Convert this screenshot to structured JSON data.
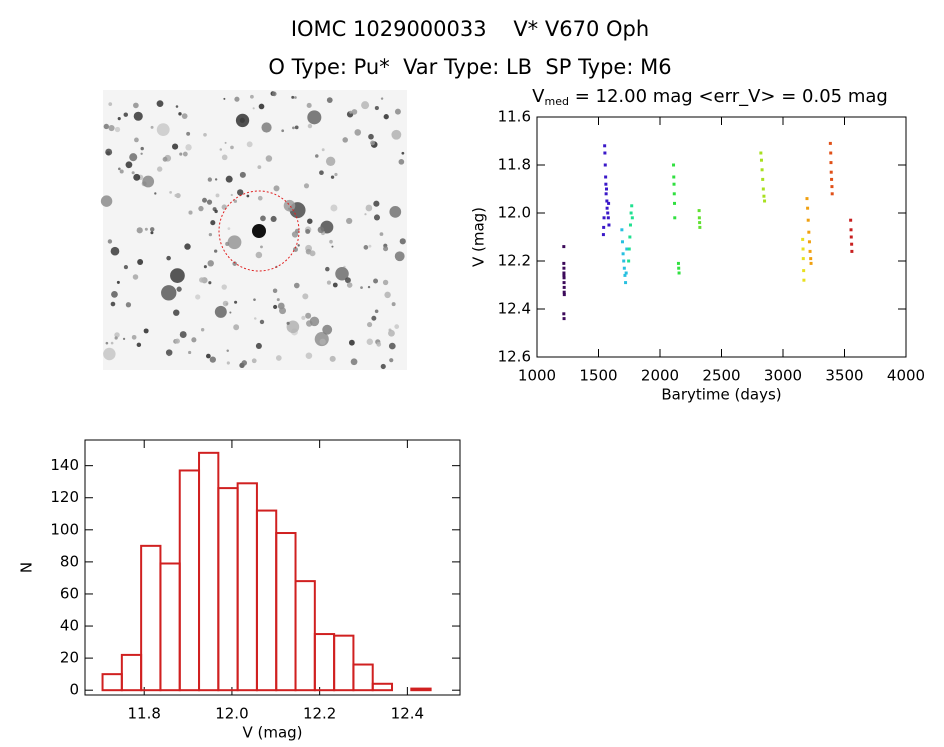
{
  "title": "IOMC 1029000033    V* V670 Oph",
  "subtitle": "O Type: Pu*  Var Type: LB  SP Type: M6",
  "chart_data": [
    {
      "type": "scatter",
      "title": {
        "main": "V",
        "sub": "med",
        "rest": " = 12.00 mag <err_V> = 0.05 mag"
      },
      "x_label": "Barytime (days)",
      "y_label": "V (mag)",
      "xlim": [
        1000,
        4000
      ],
      "xticks": [
        1000,
        1500,
        2000,
        2500,
        3000,
        3500,
        4000
      ],
      "ylim": [
        12.6,
        11.6
      ],
      "yticks": [
        11.6,
        11.8,
        {
          "value": 12,
          "label": "12.0"
        },
        12.2,
        12.4,
        12.6
      ],
      "series": [
        {
          "color": "#3c0a5a",
          "x": [
            1218,
            1218,
            1219,
            1219,
            1220,
            1220,
            1221,
            1221,
            1222,
            1218,
            1220,
            1219
          ],
          "values": [
            12.14,
            12.21,
            12.23,
            12.25,
            12.27,
            12.29,
            12.31,
            12.33,
            12.34,
            12.42,
            12.44,
            12.26
          ]
        },
        {
          "color": "#3a18c8",
          "x": [
            1540,
            1542,
            1545,
            1550,
            1552,
            1555,
            1558,
            1560,
            1562,
            1565,
            1568,
            1570,
            1575,
            1580,
            1582,
            1585
          ],
          "values": [
            12.09,
            12.06,
            12.02,
            11.72,
            11.75,
            11.8,
            11.85,
            11.88,
            11.92,
            11.9,
            11.95,
            11.98,
            12.0,
            12.02,
            11.96,
            12.05
          ]
        },
        {
          "color": "#28c0e0",
          "x": [
            1690,
            1695,
            1700,
            1705,
            1710,
            1715,
            1720,
            1725,
            1730
          ],
          "values": [
            12.07,
            12.12,
            12.17,
            12.2,
            12.23,
            12.26,
            12.29,
            12.25,
            12.15
          ]
        },
        {
          "color": "#20e090",
          "x": [
            1745,
            1750,
            1755,
            1760,
            1765,
            1770,
            1775
          ],
          "values": [
            12.2,
            12.15,
            12.1,
            12.05,
            12.0,
            11.97,
            12.02
          ]
        },
        {
          "color": "#30e040",
          "x": [
            2110,
            2112,
            2114,
            2116,
            2118,
            2120,
            2150,
            2152,
            2155
          ],
          "values": [
            11.8,
            11.85,
            11.88,
            11.92,
            11.96,
            12.02,
            12.21,
            12.23,
            12.25
          ]
        },
        {
          "color": "#60e030",
          "x": [
            2318,
            2320,
            2322,
            2324
          ],
          "values": [
            11.99,
            12.02,
            12.04,
            12.06
          ]
        },
        {
          "color": "#a8e020",
          "x": [
            2820,
            2825,
            2830,
            2835,
            2840,
            2845,
            2850
          ],
          "values": [
            11.75,
            11.78,
            11.82,
            11.86,
            11.9,
            11.93,
            11.95
          ]
        },
        {
          "color": "#e8e020",
          "x": [
            3160,
            3163,
            3165,
            3168,
            3170
          ],
          "values": [
            12.11,
            12.15,
            12.19,
            12.24,
            12.28
          ]
        },
        {
          "color": "#f0a010",
          "x": [
            3195,
            3200,
            3205,
            3210,
            3215,
            3220,
            3225,
            3228
          ],
          "values": [
            11.94,
            11.98,
            12.03,
            12.08,
            12.12,
            12.16,
            12.19,
            12.21
          ]
        },
        {
          "color": "#e05018",
          "x": [
            3385,
            3388,
            3390,
            3392,
            3395,
            3398,
            3400
          ],
          "values": [
            11.71,
            11.75,
            11.79,
            11.83,
            11.86,
            11.89,
            11.92
          ]
        },
        {
          "color": "#c82020",
          "x": [
            3550,
            3553,
            3555,
            3558,
            3560
          ],
          "values": [
            12.03,
            12.07,
            12.1,
            12.13,
            12.16
          ]
        }
      ]
    },
    {
      "type": "histogram",
      "x_label": "V (mag)",
      "y_label": "N",
      "color": "#d02020",
      "bins": [
        11.705,
        11.749,
        11.793,
        11.837,
        11.881,
        11.925,
        11.969,
        12.013,
        12.057,
        12.101,
        12.145,
        12.189,
        12.233,
        12.277,
        12.321,
        12.365,
        12.409,
        12.453
      ],
      "values": [
        10,
        22,
        90,
        79,
        137,
        148,
        126,
        129,
        112,
        98,
        68,
        35,
        34,
        16,
        4,
        0,
        1
      ],
      "xlim": [
        11.665,
        12.52
      ],
      "xticks": [
        11.8,
        {
          "value": 12,
          "label": "12.0"
        },
        12.2,
        12.4
      ],
      "ylim": [
        -3,
        156
      ],
      "yticks": [
        0,
        20,
        40,
        60,
        80,
        100,
        120,
        140
      ]
    }
  ]
}
